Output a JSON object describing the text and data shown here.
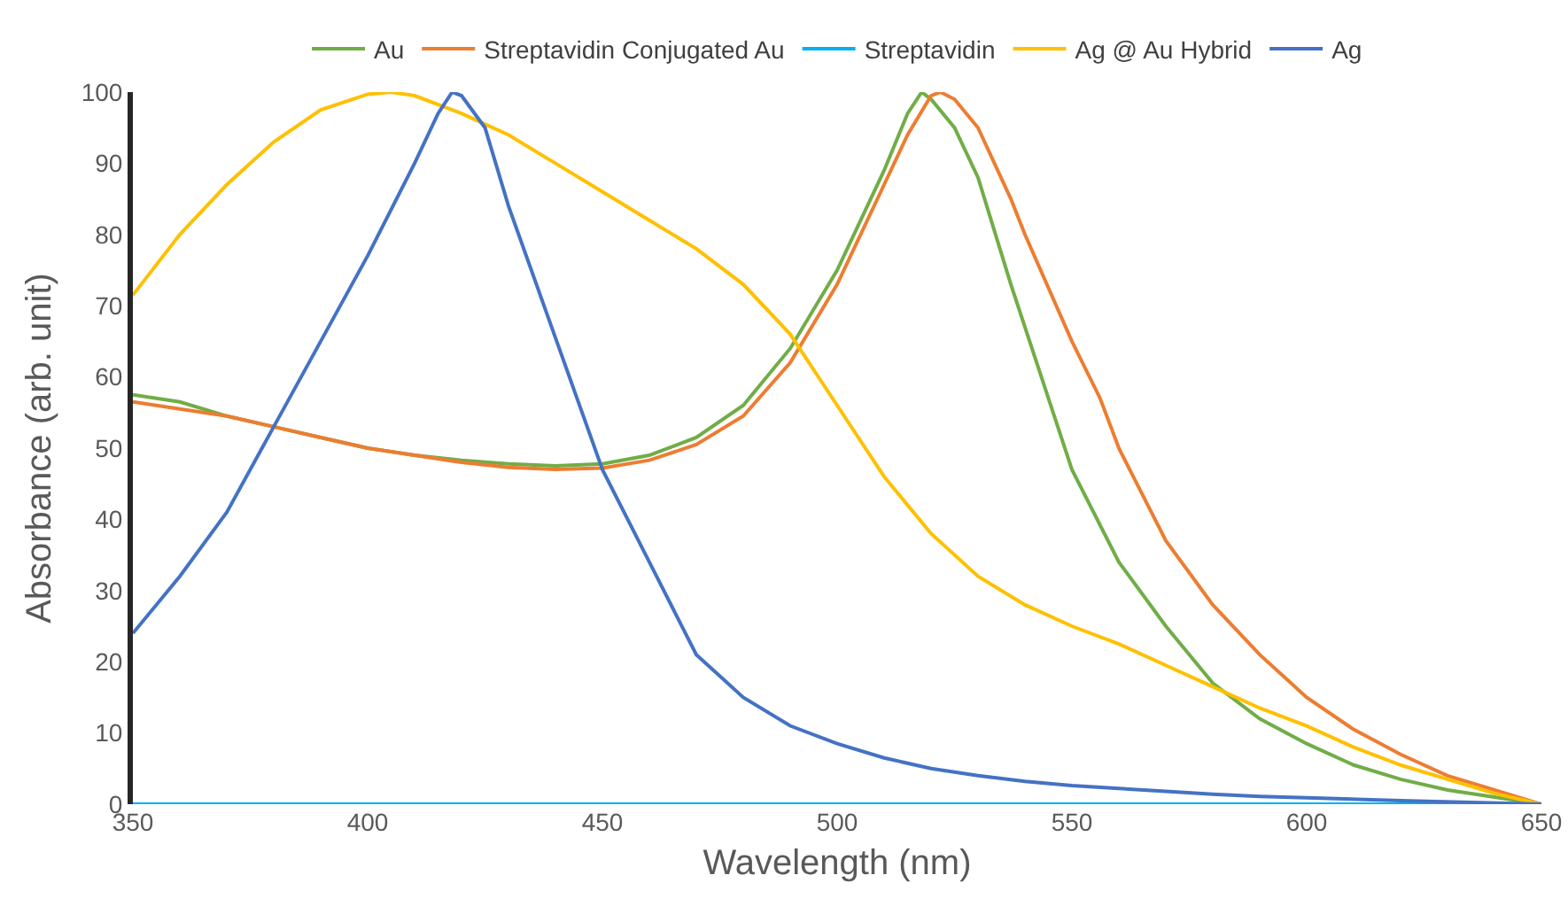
{
  "chart_data": {
    "type": "line",
    "xlabel": "Wavelength (nm)",
    "ylabel": "Absorbance (arb. unit)",
    "xlim": [
      350,
      650
    ],
    "ylim": [
      0,
      100
    ],
    "xticks": [
      350,
      400,
      450,
      500,
      550,
      600,
      650
    ],
    "yticks": [
      0,
      10,
      20,
      30,
      40,
      50,
      60,
      70,
      80,
      90,
      100
    ],
    "grid": false,
    "legend": "top",
    "marker": "none",
    "line_style": "solid",
    "series": [
      {
        "name": "Au",
        "color": "#70ad47",
        "x": [
          350,
          360,
          370,
          380,
          390,
          400,
          410,
          420,
          430,
          440,
          450,
          460,
          470,
          480,
          490,
          500,
          510,
          515,
          518,
          520,
          525,
          530,
          537,
          540,
          550,
          560,
          570,
          580,
          590,
          600,
          610,
          620,
          630,
          640,
          650
        ],
        "values": [
          57.5,
          56.5,
          54.5,
          53,
          51.5,
          50,
          49,
          48.3,
          47.8,
          47.5,
          47.8,
          49,
          51.5,
          56,
          64,
          75,
          89,
          97,
          100,
          99,
          95,
          88,
          73,
          67,
          47,
          34,
          25,
          17,
          12,
          8.5,
          5.5,
          3.5,
          2,
          1,
          0
        ]
      },
      {
        "name": "Streptavidin Conjugated Au",
        "color": "#ed7d31",
        "x": [
          350,
          360,
          370,
          380,
          390,
          400,
          410,
          420,
          430,
          440,
          450,
          460,
          470,
          480,
          490,
          500,
          510,
          515,
          520,
          522,
          525,
          530,
          537,
          540,
          550,
          556,
          560,
          570,
          580,
          590,
          600,
          610,
          620,
          630,
          640,
          650
        ],
        "values": [
          56.5,
          55.5,
          54.5,
          53,
          51.5,
          50,
          49,
          48,
          47.3,
          47,
          47.2,
          48.3,
          50.5,
          54.5,
          62,
          73,
          87,
          94,
          99.5,
          100,
          99,
          95,
          85,
          80,
          65,
          57,
          50,
          37,
          28,
          21,
          15,
          10.5,
          7,
          4,
          2,
          0
        ]
      },
      {
        "name": "Streptavidin",
        "color": "#00b0f0",
        "x": [
          350,
          400,
          450,
          500,
          550,
          600,
          650
        ],
        "values": [
          0,
          0,
          0,
          0,
          0,
          0,
          0
        ]
      },
      {
        "name": "Ag @ Au Hybrid",
        "color": "#ffc000",
        "x": [
          350,
          360,
          370,
          380,
          390,
          400,
          405,
          410,
          420,
          430,
          440,
          450,
          460,
          470,
          480,
          490,
          500,
          510,
          520,
          530,
          540,
          550,
          560,
          570,
          580,
          590,
          600,
          610,
          620,
          630,
          640,
          650
        ],
        "values": [
          71.5,
          80,
          87,
          93,
          97.5,
          99.7,
          100,
          99.5,
          97,
          94,
          90,
          86,
          82,
          78,
          73,
          66,
          56,
          46,
          38,
          32,
          28,
          25,
          22.5,
          19.5,
          16.5,
          13.5,
          11,
          8,
          5.5,
          3.5,
          1.5,
          0
        ]
      },
      {
        "name": "Ag",
        "color": "#4472c4",
        "x": [
          350,
          360,
          370,
          380,
          390,
          400,
          410,
          415,
          418,
          420,
          425,
          430,
          440,
          450,
          460,
          470,
          480,
          490,
          500,
          510,
          520,
          530,
          540,
          550,
          560,
          570,
          580,
          590,
          600,
          620,
          650
        ],
        "values": [
          24,
          32,
          41,
          53,
          65,
          77,
          90,
          97,
          100,
          99.5,
          95,
          84,
          65.5,
          47,
          34,
          21,
          15,
          11,
          8.5,
          6.5,
          5,
          4,
          3.2,
          2.6,
          2.2,
          1.8,
          1.4,
          1.1,
          0.9,
          0.5,
          0
        ]
      }
    ]
  }
}
